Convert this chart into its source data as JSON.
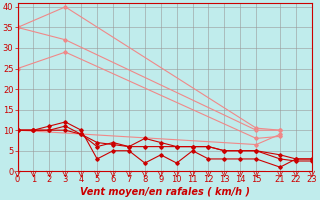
{
  "background_color": "#c0ecec",
  "grid_color": "#999999",
  "xlabel": "Vent moyen/en rafales ( km/h )",
  "xlim": [
    0,
    18.5
  ],
  "ylim": [
    0,
    41
  ],
  "yticks": [
    0,
    5,
    10,
    15,
    20,
    25,
    30,
    35,
    40
  ],
  "xtick_positions": [
    0,
    1,
    2,
    3,
    4,
    5,
    6,
    7,
    8,
    9,
    10,
    11,
    12,
    13,
    14,
    15,
    16.5,
    17.5,
    18.5
  ],
  "xtick_labels": [
    "0",
    "1",
    "2",
    "3",
    "4",
    "5",
    "6",
    "7",
    "8",
    "9",
    "10",
    "11",
    "12",
    "13",
    "14",
    "15",
    "21",
    "22",
    "23"
  ],
  "lines_light": [
    {
      "x": [
        0,
        3,
        15,
        16.5
      ],
      "y": [
        35,
        40,
        10.5,
        10
      ],
      "color": "#f08888"
    },
    {
      "x": [
        0,
        3,
        15,
        16.5
      ],
      "y": [
        35,
        32,
        10,
        10
      ],
      "color": "#f08888"
    },
    {
      "x": [
        0,
        3,
        15,
        16.5
      ],
      "y": [
        25,
        29,
        8,
        8.5
      ],
      "color": "#f08888"
    },
    {
      "x": [
        0,
        15,
        16.5
      ],
      "y": [
        10,
        6.5,
        9
      ],
      "color": "#f08888"
    }
  ],
  "lines_dark": [
    {
      "x": [
        0,
        1,
        2,
        3,
        4,
        5,
        6,
        7,
        8,
        9,
        10,
        11,
        12,
        13,
        14,
        15,
        16.5,
        17.5,
        18.5
      ],
      "y": [
        10,
        10,
        11,
        12,
        10,
        3,
        5,
        5,
        2,
        4,
        2,
        5,
        3,
        3,
        3,
        3,
        1,
        3,
        3
      ],
      "color": "#cc0000"
    },
    {
      "x": [
        0,
        1,
        2,
        3,
        4,
        5,
        6,
        7,
        8,
        9,
        10,
        11,
        12,
        13,
        14,
        15,
        16.5,
        17.5,
        18.5
      ],
      "y": [
        10,
        10,
        10,
        11,
        9,
        6,
        7,
        6,
        8,
        7,
        6,
        6,
        6,
        5,
        5,
        5,
        4,
        3,
        3
      ],
      "color": "#cc0000"
    },
    {
      "x": [
        0,
        1,
        2,
        3,
        4,
        5,
        6,
        7,
        8,
        9,
        10,
        11,
        12,
        13,
        14,
        15,
        16.5,
        17.5,
        18.5
      ],
      "y": [
        10,
        10,
        10,
        10,
        9,
        7,
        6.5,
        6,
        6,
        6,
        6,
        6,
        6,
        5,
        5,
        5,
        3,
        2.5,
        2.5
      ],
      "color": "#cc0000"
    }
  ],
  "marker_style": "D",
  "marker_size": 1.8,
  "line_width": 0.8,
  "font_size_label": 7,
  "font_size_tick": 6,
  "gap_line_x": 15.75
}
